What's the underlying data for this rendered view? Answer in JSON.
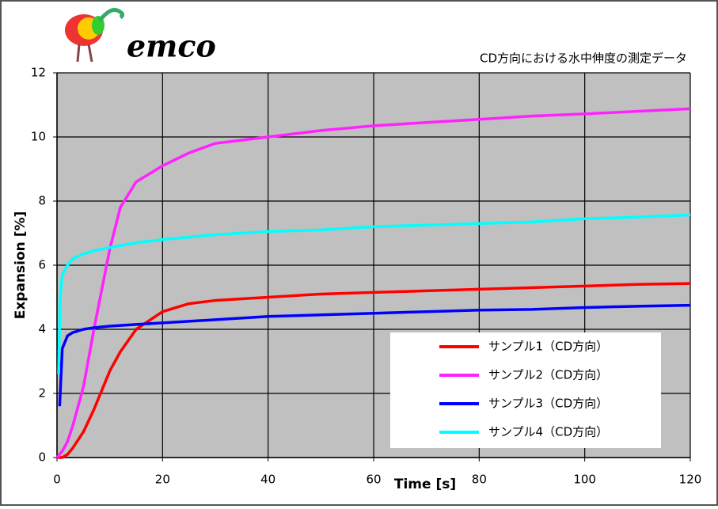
{
  "chart_data": {
    "type": "line",
    "logo": "emco",
    "title": "CD方向における水中伸度の測定データ",
    "x_label": "Time [s]",
    "y_label": "Expansion [%]",
    "xlim": [
      0,
      120
    ],
    "xticks": [
      0,
      20,
      40,
      60,
      80,
      100,
      120
    ],
    "ylim": [
      0,
      12
    ],
    "yticks": [
      0,
      2,
      4,
      6,
      8,
      10,
      12
    ],
    "grid": true,
    "legend": "lower right",
    "series": [
      {
        "name": "サンプル1（CD方向）",
        "color": "#ff0000",
        "x": [
          0,
          1,
          2,
          3,
          5,
          7,
          10,
          12,
          15,
          20,
          25,
          30,
          40,
          50,
          60,
          70,
          80,
          90,
          100,
          110,
          120
        ],
        "values": [
          0,
          0,
          0.1,
          0.3,
          0.8,
          1.5,
          2.7,
          3.3,
          4.0,
          4.55,
          4.8,
          4.9,
          5.0,
          5.1,
          5.15,
          5.2,
          5.25,
          5.3,
          5.35,
          5.4,
          5.43
        ]
      },
      {
        "name": "サンプル2（CD方向）",
        "color": "#ff22ff",
        "x": [
          0,
          1,
          2,
          3,
          5,
          7,
          10,
          12,
          15,
          20,
          25,
          30,
          40,
          50,
          60,
          70,
          80,
          90,
          100,
          110,
          120
        ],
        "values": [
          0,
          0.2,
          0.5,
          1.0,
          2.2,
          4.0,
          6.5,
          7.8,
          8.6,
          9.1,
          9.5,
          9.8,
          10.0,
          10.2,
          10.35,
          10.45,
          10.55,
          10.65,
          10.72,
          10.8,
          10.88
        ]
      },
      {
        "name": "サンプル3（CD方向）",
        "color": "#0000ff",
        "x": [
          0.5,
          1,
          2,
          3,
          5,
          7,
          10,
          15,
          20,
          30,
          40,
          50,
          60,
          70,
          80,
          90,
          100,
          110,
          120
        ],
        "values": [
          1.6,
          3.4,
          3.8,
          3.9,
          4.0,
          4.05,
          4.1,
          4.15,
          4.2,
          4.3,
          4.4,
          4.45,
          4.5,
          4.55,
          4.6,
          4.62,
          4.68,
          4.72,
          4.75
        ]
      },
      {
        "name": "サンプル4（CD方向）",
        "color": "#00ffff",
        "x": [
          0.3,
          0.6,
          1,
          2,
          3,
          5,
          7,
          10,
          15,
          20,
          30,
          40,
          50,
          60,
          70,
          80,
          90,
          100,
          110,
          120
        ],
        "values": [
          2.6,
          5.0,
          5.7,
          6.0,
          6.2,
          6.35,
          6.45,
          6.55,
          6.7,
          6.8,
          6.95,
          7.05,
          7.1,
          7.2,
          7.25,
          7.3,
          7.35,
          7.45,
          7.5,
          7.57
        ]
      }
    ]
  }
}
